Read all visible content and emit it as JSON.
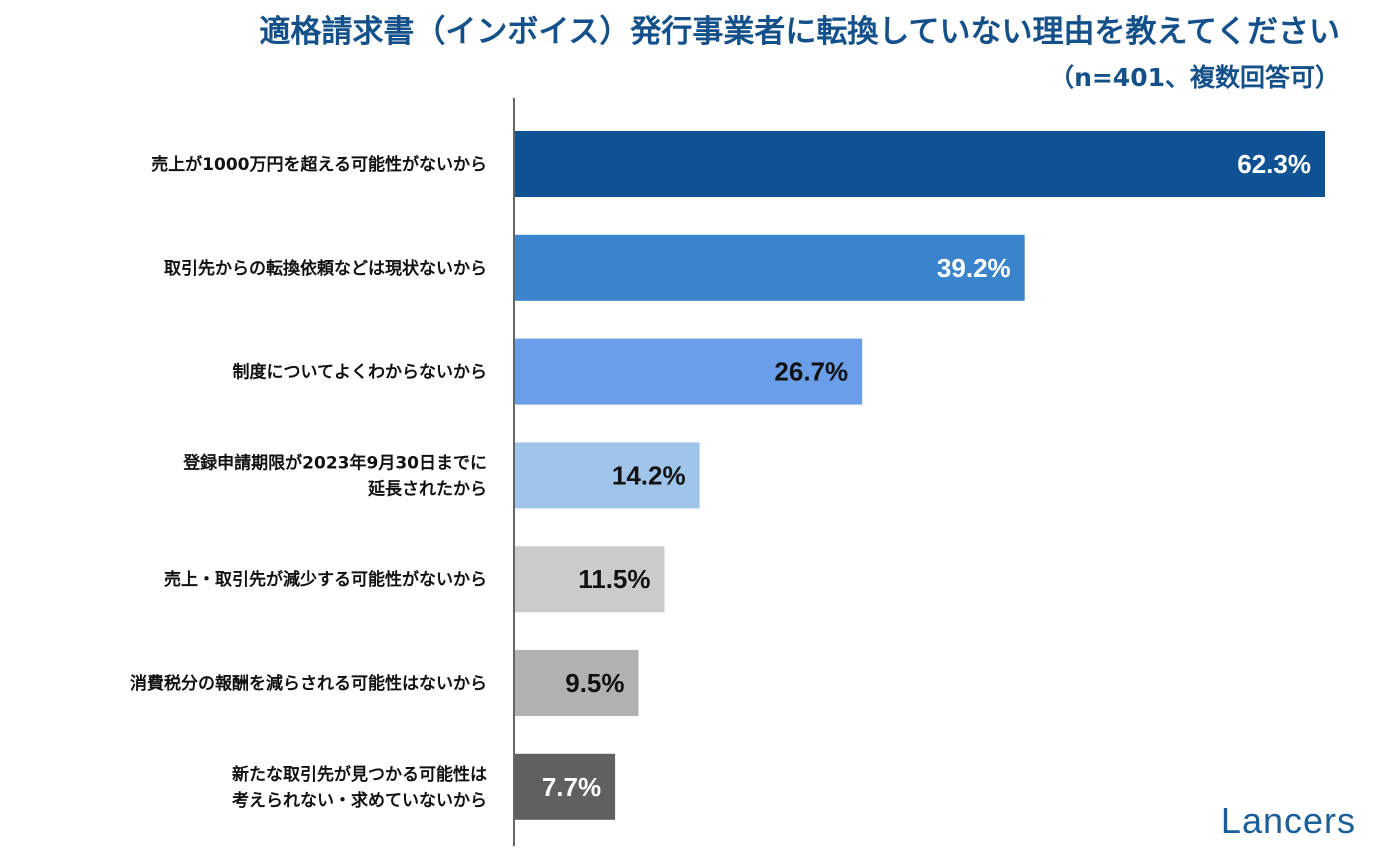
{
  "chart_data": {
    "type": "bar",
    "orientation": "horizontal",
    "title": "適格請求書（インボイス）発行事業者に転換していない理由を教えてください",
    "subtitle": "（n=401、複数回答可）",
    "categories": [
      [
        "売上が1000万円を超える可能性がないから"
      ],
      [
        "取引先からの転換依頼などは現状ないから"
      ],
      [
        "制度についてよくわからないから"
      ],
      [
        "登録申請期限が2023年9月30日までに",
        "延長されたから"
      ],
      [
        "売上・取引先が減少する可能性がないから"
      ],
      [
        "消費税分の報酬を減らされる可能性はないから"
      ],
      [
        "新たな取引先が見つかる可能性は",
        "考えられない・求めていないから"
      ]
    ],
    "values": [
      62.3,
      39.2,
      26.7,
      14.2,
      11.5,
      9.5,
      7.7
    ],
    "value_labels": [
      "62.3%",
      "39.2%",
      "26.7%",
      "14.2%",
      "11.5%",
      "9.5%",
      "7.7%"
    ],
    "bar_colors": [
      "#0e5294",
      "#3a84cb",
      "#6a9ee9",
      "#a0c5ea",
      "#cbcbcb",
      "#b1b1b1",
      "#606060"
    ],
    "label_colors": [
      "#ffffff",
      "#ffffff",
      "#111111",
      "#111111",
      "#111111",
      "#111111",
      "#ffffff"
    ],
    "xlim": [
      0,
      62.3
    ],
    "grid": false,
    "legend": "none"
  },
  "logo": "Lancers",
  "colors": {
    "title": "#14508a",
    "axis": "#666666",
    "logo": "#1a5e9a"
  }
}
